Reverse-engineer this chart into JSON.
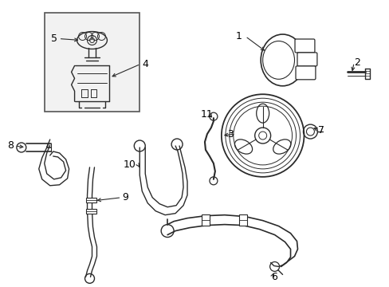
{
  "background_color": "#ffffff",
  "line_color": "#2a2a2a",
  "label_color": "#000000",
  "figsize": [
    4.89,
    3.6
  ],
  "dpi": 100,
  "xlim": [
    0,
    489
  ],
  "ylim": [
    0,
    360
  ]
}
